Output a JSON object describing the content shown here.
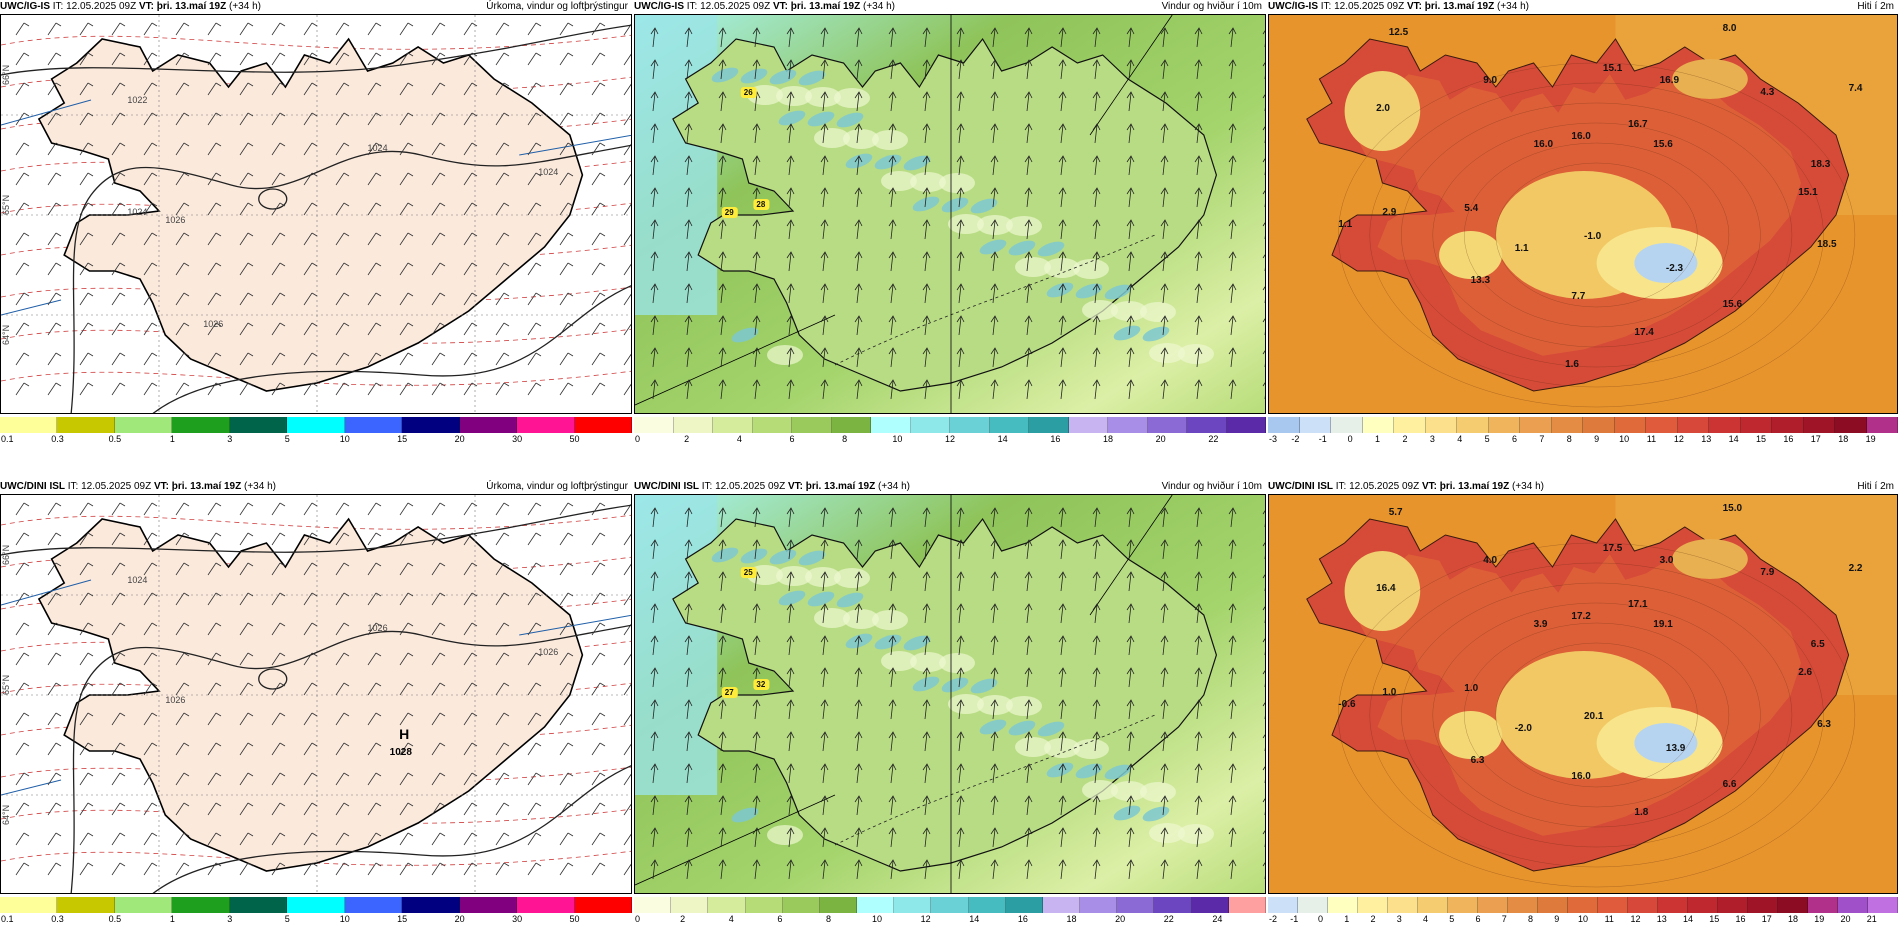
{
  "panels": [
    {
      "id": "igis-precip",
      "model": "UWC/IG-IS",
      "init_label": "IT:",
      "init": "12.05.2025 09Z",
      "vt_label": "VT:",
      "valid": "þri. 13.maí 19Z",
      "lead": "(+34 h)",
      "title": "Úrkoma, vindur og loftþrýstingur",
      "kind": "precip",
      "isobars": [
        "1022",
        "1024",
        "1026",
        "1024",
        "1024",
        "1026"
      ],
      "lat_labels": [
        "66°N",
        "65°N",
        "64°N"
      ],
      "scale": {
        "colors": [
          "#ffff99",
          "#c8c800",
          "#a0e87a",
          "#1ea01e",
          "#00644b",
          "#00ffff",
          "#3c64ff",
          "#000080",
          "#800080",
          "#ff1493",
          "#ff0000"
        ],
        "ticks": [
          "0.1",
          "0.3",
          "0.5",
          "1",
          "3",
          "5",
          "10",
          "15",
          "20",
          "30",
          "50"
        ]
      }
    },
    {
      "id": "igis-wind",
      "model": "UWC/IG-IS",
      "init_label": "IT:",
      "init": "12.05.2025 09Z",
      "vt_label": "VT:",
      "valid": "þri. 13.maí 19Z",
      "lead": "(+34 h)",
      "title": "Vindur og hviður í 10m",
      "kind": "wind",
      "gust_labels": [
        "26",
        "29",
        "28"
      ],
      "scale": {
        "colors": [
          "#fbfde0",
          "#eef6c6",
          "#d4ec9c",
          "#b6dc78",
          "#9aca5c",
          "#7cb442",
          "#b0ffff",
          "#8ee8ea",
          "#6ad2d6",
          "#46bcc0",
          "#2a9ea2",
          "#c8b4f0",
          "#a88ee6",
          "#8c6ad6",
          "#6c46c0",
          "#5a2aa8"
        ],
        "ticks": [
          "0",
          "2",
          "4",
          "6",
          "8",
          "10",
          "12",
          "14",
          "16",
          "18",
          "20",
          "22"
        ]
      }
    },
    {
      "id": "igis-temp",
      "model": "UWC/IG-IS",
      "init_label": "IT:",
      "init": "12.05.2025 09Z",
      "vt_label": "VT:",
      "valid": "þri. 13.maí 19Z",
      "lead": "(+34 h)",
      "title": "Hiti í 2m",
      "kind": "temp",
      "temp_labels": [
        "12.5",
        "8.0",
        "15.1",
        "16.9",
        "4.3",
        "7.4",
        "9.0",
        "2.0",
        "16.7",
        "16.0",
        "15.6",
        "18.3",
        "16.0",
        "15.1",
        "5.4",
        "2.9",
        "1.1",
        "1.1",
        "-1.0",
        "-2.3",
        "18.5",
        "13.3",
        "7.7",
        "15.6",
        "17.4",
        "1.6"
      ],
      "scale": {
        "colors": [
          "#a8c8f0",
          "#cce0f8",
          "#e6f0e8",
          "#ffffc0",
          "#fff0a0",
          "#fde08c",
          "#f6cc70",
          "#f0b45c",
          "#eaa050",
          "#e48c44",
          "#de7a3c",
          "#e06a3a",
          "#e05a3c",
          "#d8483a",
          "#cc3434",
          "#c02830",
          "#b01e2c",
          "#a01428",
          "#8c0c24",
          "#b0308a"
        ],
        "ticks": [
          "-3",
          "-2",
          "-1",
          "0",
          "1",
          "2",
          "3",
          "4",
          "5",
          "6",
          "7",
          "8",
          "9",
          "10",
          "11",
          "12",
          "13",
          "14",
          "15",
          "16",
          "17",
          "18",
          "19"
        ]
      }
    },
    {
      "id": "dini-precip",
      "model": "UWC/DINI ISL",
      "init_label": "IT:",
      "init": "12.05.2025 09Z",
      "vt_label": "VT:",
      "valid": "þri. 13.maí 19Z",
      "lead": "(+34 h)",
      "title": "Úrkoma, vindur og loftþrýstingur",
      "kind": "precip",
      "isobars": [
        "1024",
        "1026",
        "1026",
        "1026"
      ],
      "high_label": "H",
      "high_value": "1028",
      "lat_labels": [
        "66°N",
        "65°N",
        "64°N"
      ],
      "scale": {
        "colors": [
          "#ffff99",
          "#c8c800",
          "#a0e87a",
          "#1ea01e",
          "#00644b",
          "#00ffff",
          "#3c64ff",
          "#000080",
          "#800080",
          "#ff1493",
          "#ff0000"
        ],
        "ticks": [
          "0.1",
          "0.3",
          "0.5",
          "1",
          "3",
          "5",
          "10",
          "15",
          "20",
          "30",
          "50"
        ]
      }
    },
    {
      "id": "dini-wind",
      "model": "UWC/DINI ISL",
      "init_label": "IT:",
      "init": "12.05.2025 09Z",
      "vt_label": "VT:",
      "valid": "þri. 13.maí 19Z",
      "lead": "(+34 h)",
      "title": "Vindur og hviður í 10m",
      "kind": "wind",
      "gust_labels": [
        "25",
        "27",
        "32"
      ],
      "scale": {
        "colors": [
          "#fbfde0",
          "#eef6c6",
          "#d4ec9c",
          "#b6dc78",
          "#9aca5c",
          "#7cb442",
          "#b0ffff",
          "#8ee8ea",
          "#6ad2d6",
          "#46bcc0",
          "#2a9ea2",
          "#c8b4f0",
          "#a88ee6",
          "#8c6ad6",
          "#6c46c0",
          "#5a2aa8",
          "#ffa0a0"
        ],
        "ticks": [
          "0",
          "2",
          "4",
          "6",
          "8",
          "10",
          "12",
          "14",
          "16",
          "18",
          "20",
          "22",
          "24"
        ]
      }
    },
    {
      "id": "dini-temp",
      "model": "UWC/DINI ISL",
      "init_label": "IT:",
      "init": "12.05.2025 09Z",
      "vt_label": "VT:",
      "valid": "þri. 13.maí 19Z",
      "lead": "(+34 h)",
      "title": "Hiti í 2m",
      "kind": "temp",
      "temp_labels": [
        "5.7",
        "15.0",
        "17.5",
        "3.0",
        "7.9",
        "2.2",
        "4.0",
        "16.4",
        "17.1",
        "17.2",
        "19.1",
        "6.5",
        "3.9",
        "2.6",
        "1.0",
        "1.0",
        "-0.6",
        "-2.0",
        "20.1",
        "13.9",
        "6.3",
        "6.3",
        "16.0",
        "6.6",
        "1.8"
      ],
      "scale": {
        "colors": [
          "#cce0f8",
          "#e6f0e8",
          "#ffffc0",
          "#fff0a0",
          "#fde08c",
          "#f6cc70",
          "#f0b45c",
          "#eaa050",
          "#e48c44",
          "#de7a3c",
          "#e06a3a",
          "#e05a3c",
          "#d8483a",
          "#cc3434",
          "#c02830",
          "#b01e2c",
          "#a01428",
          "#8c0c24",
          "#b0308a",
          "#a050c8",
          "#c070e0"
        ],
        "ticks": [
          "-2",
          "-1",
          "0",
          "1",
          "2",
          "3",
          "4",
          "5",
          "6",
          "7",
          "8",
          "9",
          "10",
          "11",
          "12",
          "13",
          "14",
          "15",
          "16",
          "17",
          "18",
          "19",
          "20",
          "21"
        ]
      }
    }
  ]
}
